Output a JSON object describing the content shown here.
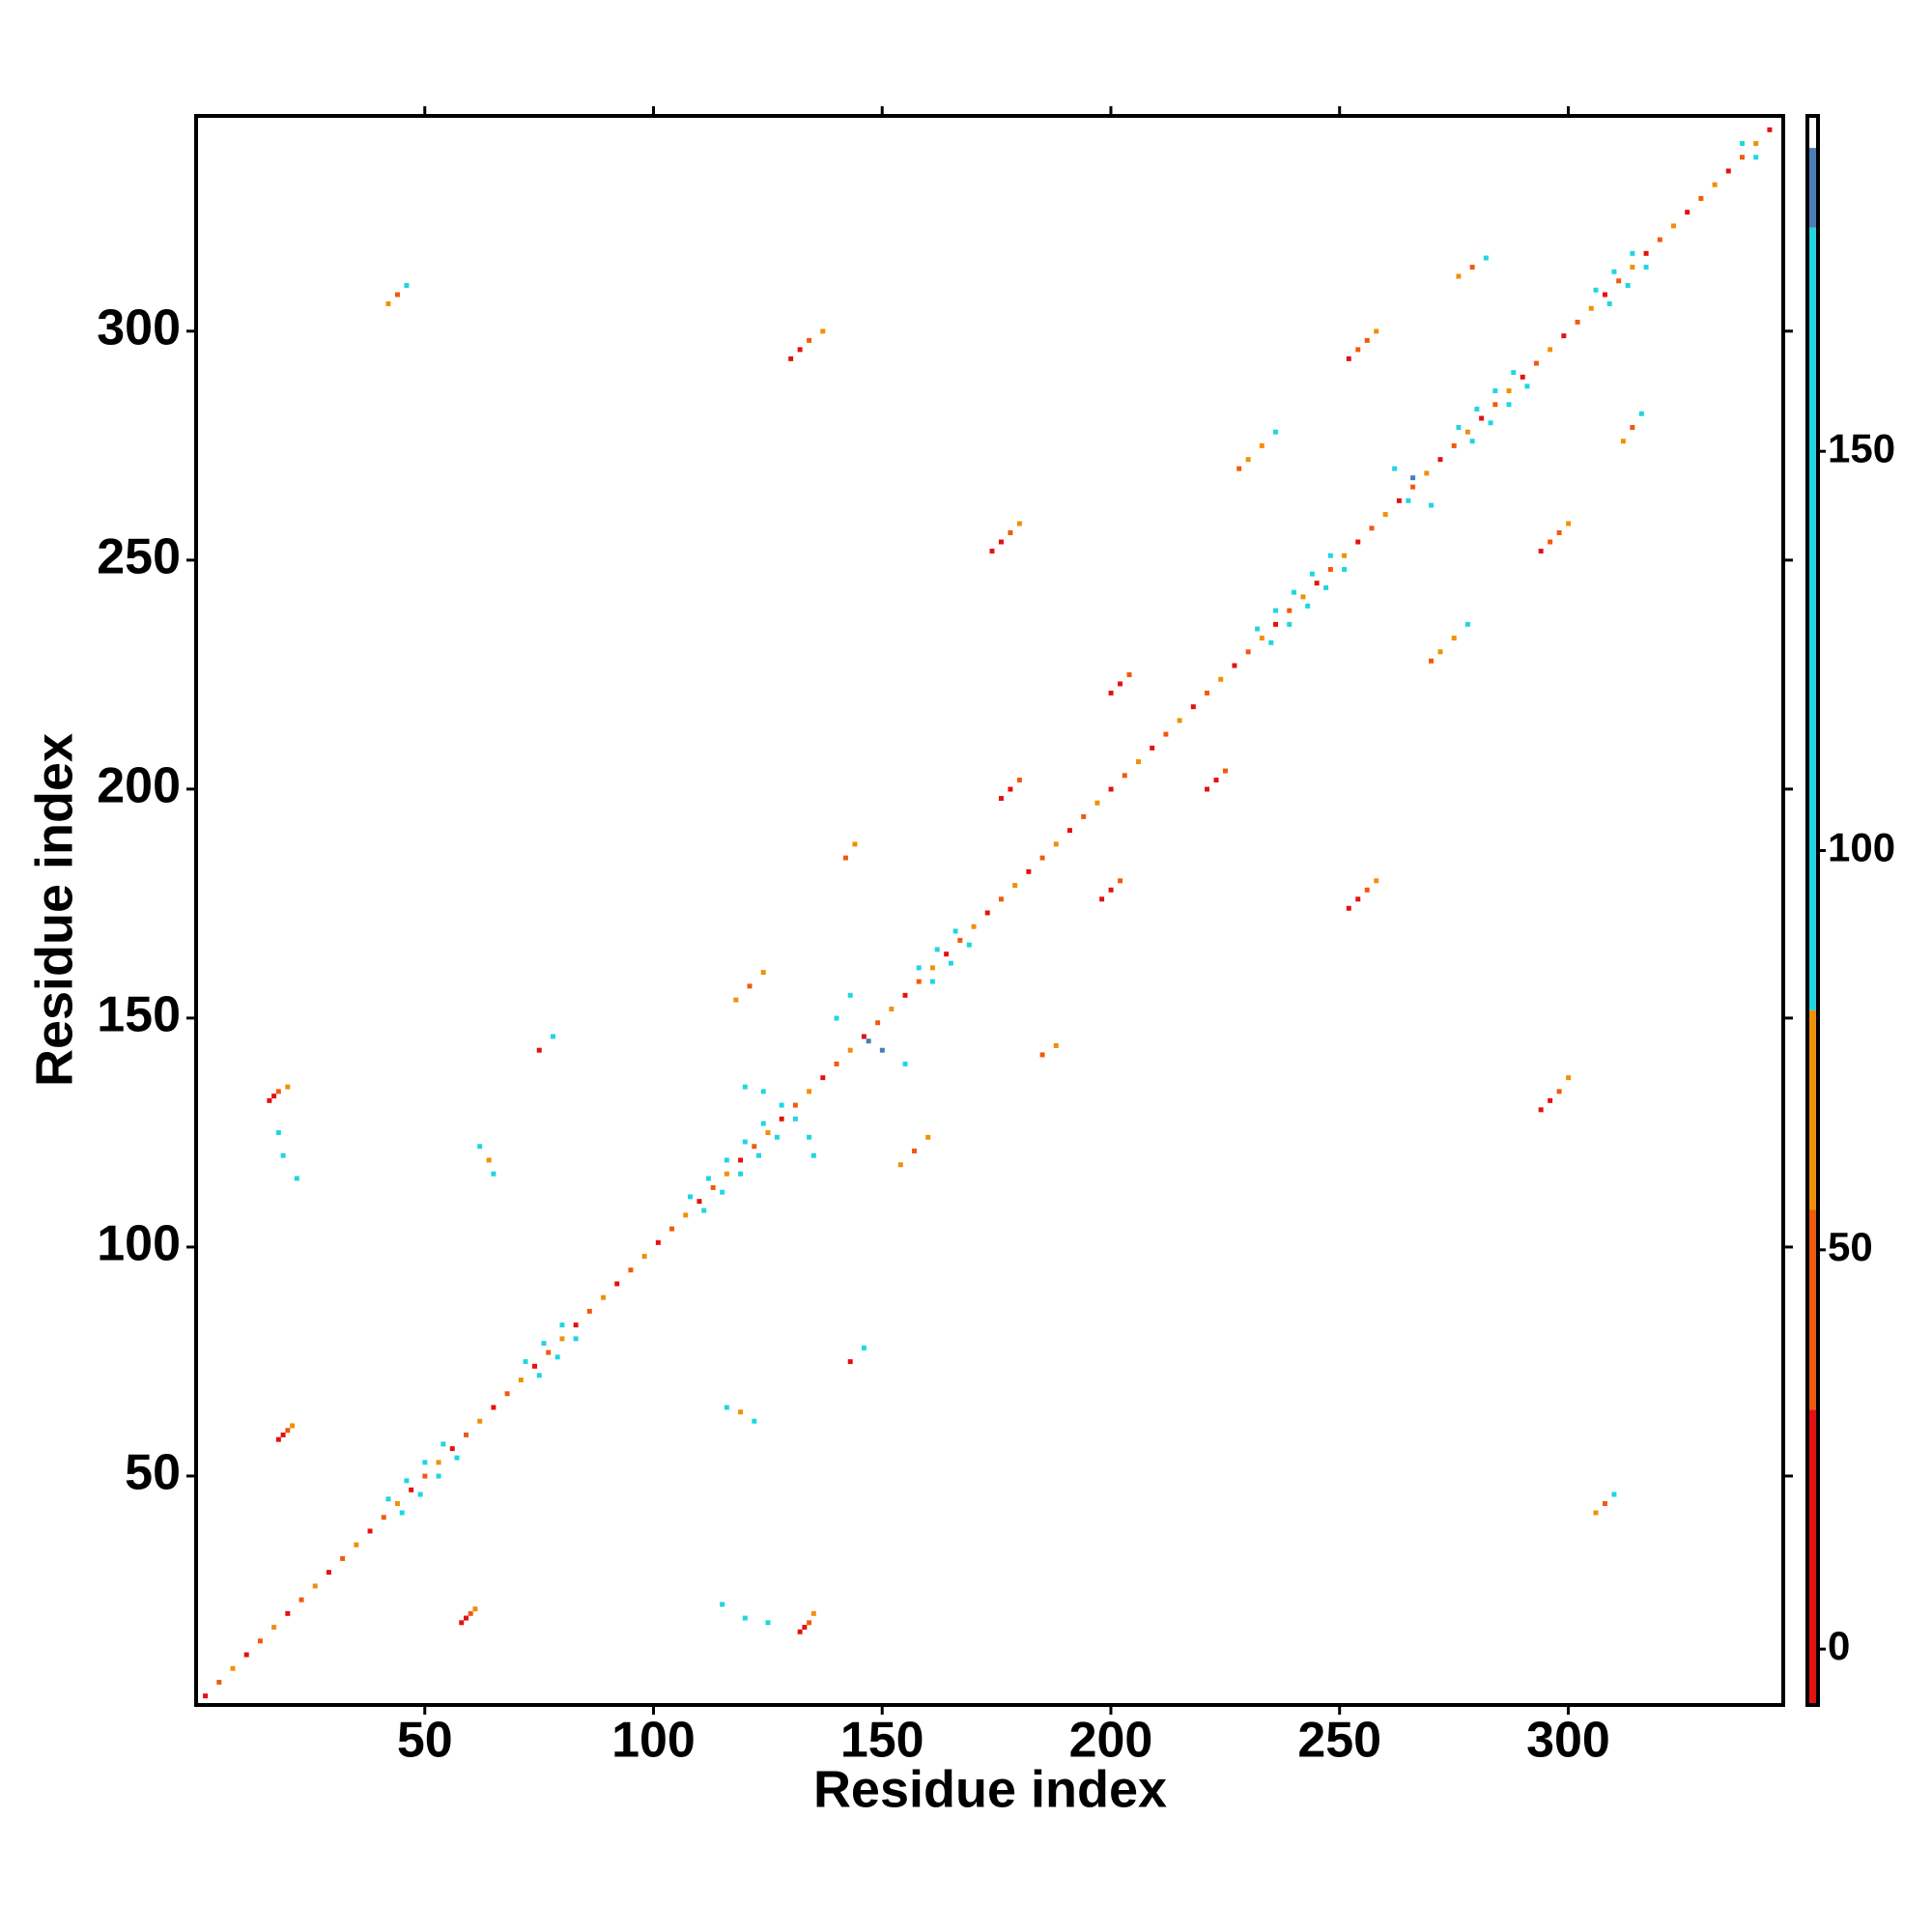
{
  "chart_data": {
    "type": "heatmap",
    "xlabel": "Residue index",
    "ylabel": "Residue index",
    "xlim": [
      0,
      347
    ],
    "ylim": [
      0,
      347
    ],
    "xticks": [
      50,
      100,
      150,
      200,
      250,
      300
    ],
    "yticks": [
      50,
      100,
      150,
      200,
      250,
      300
    ],
    "color_bins": [
      -7,
      30,
      55,
      80,
      178,
      188,
      192
    ],
    "colors": [
      "#e3120f",
      "#f05a10",
      "#f0900a",
      "#1fd6e0",
      "#4a7fb5",
      "#ffffff"
    ],
    "cticks": [
      0,
      50,
      100,
      150
    ],
    "cells": [
      [
        2,
        2,
        10
      ],
      [
        5,
        5,
        40
      ],
      [
        8,
        8,
        65
      ],
      [
        11,
        11,
        10
      ],
      [
        14,
        14,
        40
      ],
      [
        17,
        17,
        65
      ],
      [
        20,
        20,
        10
      ],
      [
        23,
        23,
        40
      ],
      [
        26,
        26,
        65
      ],
      [
        29,
        29,
        10
      ],
      [
        32,
        32,
        40
      ],
      [
        35,
        35,
        65
      ],
      [
        38,
        38,
        10
      ],
      [
        41,
        41,
        40
      ],
      [
        44,
        44,
        65
      ],
      [
        47,
        47,
        10
      ],
      [
        50,
        50,
        40
      ],
      [
        53,
        53,
        65
      ],
      [
        56,
        56,
        10
      ],
      [
        59,
        59,
        40
      ],
      [
        62,
        62,
        65
      ],
      [
        65,
        65,
        10
      ],
      [
        68,
        68,
        40
      ],
      [
        71,
        71,
        65
      ],
      [
        74,
        74,
        10
      ],
      [
        77,
        77,
        40
      ],
      [
        80,
        80,
        65
      ],
      [
        83,
        83,
        10
      ],
      [
        86,
        86,
        40
      ],
      [
        89,
        89,
        65
      ],
      [
        92,
        92,
        10
      ],
      [
        95,
        95,
        40
      ],
      [
        98,
        98,
        65
      ],
      [
        101,
        101,
        10
      ],
      [
        104,
        104,
        40
      ],
      [
        107,
        107,
        65
      ],
      [
        110,
        110,
        10
      ],
      [
        113,
        113,
        40
      ],
      [
        116,
        116,
        65
      ],
      [
        119,
        119,
        10
      ],
      [
        122,
        122,
        40
      ],
      [
        125,
        125,
        65
      ],
      [
        128,
        128,
        10
      ],
      [
        131,
        131,
        40
      ],
      [
        134,
        134,
        65
      ],
      [
        137,
        137,
        10
      ],
      [
        140,
        140,
        40
      ],
      [
        143,
        143,
        65
      ],
      [
        146,
        146,
        10
      ],
      [
        149,
        149,
        40
      ],
      [
        152,
        152,
        65
      ],
      [
        155,
        155,
        10
      ],
      [
        158,
        158,
        40
      ],
      [
        161,
        161,
        65
      ],
      [
        164,
        164,
        10
      ],
      [
        167,
        167,
        40
      ],
      [
        170,
        170,
        65
      ],
      [
        173,
        173,
        10
      ],
      [
        176,
        176,
        40
      ],
      [
        179,
        179,
        65
      ],
      [
        182,
        182,
        10
      ],
      [
        185,
        185,
        40
      ],
      [
        188,
        188,
        65
      ],
      [
        191,
        191,
        10
      ],
      [
        194,
        194,
        40
      ],
      [
        197,
        197,
        65
      ],
      [
        200,
        200,
        10
      ],
      [
        203,
        203,
        40
      ],
      [
        206,
        206,
        65
      ],
      [
        209,
        209,
        10
      ],
      [
        212,
        212,
        40
      ],
      [
        215,
        215,
        65
      ],
      [
        218,
        218,
        10
      ],
      [
        221,
        221,
        40
      ],
      [
        224,
        224,
        65
      ],
      [
        227,
        227,
        10
      ],
      [
        230,
        230,
        40
      ],
      [
        233,
        233,
        65
      ],
      [
        236,
        236,
        10
      ],
      [
        239,
        239,
        40
      ],
      [
        242,
        242,
        65
      ],
      [
        245,
        245,
        10
      ],
      [
        248,
        248,
        40
      ],
      [
        251,
        251,
        65
      ],
      [
        254,
        254,
        10
      ],
      [
        257,
        257,
        40
      ],
      [
        260,
        260,
        65
      ],
      [
        263,
        263,
        10
      ],
      [
        266,
        266,
        40
      ],
      [
        269,
        269,
        65
      ],
      [
        272,
        272,
        10
      ],
      [
        275,
        275,
        40
      ],
      [
        278,
        278,
        65
      ],
      [
        281,
        281,
        10
      ],
      [
        284,
        284,
        40
      ],
      [
        287,
        287,
        65
      ],
      [
        290,
        290,
        10
      ],
      [
        293,
        293,
        40
      ],
      [
        296,
        296,
        65
      ],
      [
        299,
        299,
        10
      ],
      [
        302,
        302,
        40
      ],
      [
        305,
        305,
        65
      ],
      [
        308,
        308,
        10
      ],
      [
        311,
        311,
        40
      ],
      [
        314,
        314,
        65
      ],
      [
        317,
        317,
        10
      ],
      [
        320,
        320,
        40
      ],
      [
        323,
        323,
        65
      ],
      [
        326,
        326,
        10
      ],
      [
        329,
        329,
        40
      ],
      [
        332,
        332,
        65
      ],
      [
        335,
        335,
        10
      ],
      [
        338,
        338,
        40
      ],
      [
        341,
        341,
        65
      ],
      [
        344,
        344,
        10
      ],
      [
        42,
        45,
        120
      ],
      [
        45,
        42,
        120
      ],
      [
        46,
        49,
        120
      ],
      [
        49,
        46,
        120
      ],
      [
        50,
        53,
        120
      ],
      [
        53,
        50,
        120
      ],
      [
        54,
        57,
        120
      ],
      [
        57,
        54,
        120
      ],
      [
        72,
        75,
        120
      ],
      [
        75,
        72,
        120
      ],
      [
        76,
        79,
        120
      ],
      [
        79,
        76,
        120
      ],
      [
        80,
        83,
        120
      ],
      [
        83,
        80,
        120
      ],
      [
        108,
        111,
        120
      ],
      [
        111,
        108,
        120
      ],
      [
        112,
        115,
        120
      ],
      [
        115,
        112,
        120
      ],
      [
        116,
        119,
        120
      ],
      [
        119,
        116,
        120
      ],
      [
        120,
        123,
        120
      ],
      [
        123,
        120,
        120
      ],
      [
        124,
        127,
        120
      ],
      [
        127,
        124,
        120
      ],
      [
        128,
        131,
        120
      ],
      [
        131,
        128,
        120
      ],
      [
        158,
        161,
        120
      ],
      [
        161,
        158,
        120
      ],
      [
        162,
        165,
        120
      ],
      [
        165,
        162,
        120
      ],
      [
        166,
        169,
        120
      ],
      [
        169,
        166,
        120
      ],
      [
        232,
        235,
        120
      ],
      [
        235,
        232,
        120
      ],
      [
        236,
        239,
        120
      ],
      [
        239,
        236,
        120
      ],
      [
        240,
        243,
        120
      ],
      [
        243,
        240,
        120
      ],
      [
        244,
        247,
        120
      ],
      [
        247,
        244,
        120
      ],
      [
        248,
        251,
        120
      ],
      [
        251,
        248,
        120
      ],
      [
        276,
        279,
        120
      ],
      [
        279,
        276,
        120
      ],
      [
        280,
        283,
        120
      ],
      [
        283,
        280,
        120
      ],
      [
        284,
        287,
        120
      ],
      [
        287,
        284,
        120
      ],
      [
        288,
        291,
        120
      ],
      [
        291,
        288,
        120
      ],
      [
        306,
        309,
        120
      ],
      [
        309,
        306,
        120
      ],
      [
        310,
        313,
        120
      ],
      [
        313,
        310,
        120
      ],
      [
        314,
        317,
        120
      ],
      [
        317,
        314,
        120
      ],
      [
        338,
        341,
        120
      ],
      [
        341,
        338,
        120
      ],
      [
        58,
        18,
        10
      ],
      [
        59,
        19,
        10
      ],
      [
        60,
        20,
        40
      ],
      [
        61,
        21,
        65
      ],
      [
        18,
        58,
        10
      ],
      [
        19,
        59,
        10
      ],
      [
        20,
        60,
        40
      ],
      [
        21,
        61,
        65
      ],
      [
        132,
        16,
        10
      ],
      [
        133,
        17,
        10
      ],
      [
        134,
        18,
        40
      ],
      [
        135,
        20,
        65
      ],
      [
        16,
        132,
        10
      ],
      [
        17,
        133,
        10
      ],
      [
        18,
        134,
        40
      ],
      [
        20,
        135,
        65
      ],
      [
        115,
        22,
        120
      ],
      [
        120,
        19,
        120
      ],
      [
        125,
        18,
        120
      ],
      [
        22,
        115,
        120
      ],
      [
        19,
        120,
        120
      ],
      [
        18,
        125,
        120
      ],
      [
        198,
        176,
        10
      ],
      [
        200,
        178,
        10
      ],
      [
        202,
        180,
        40
      ],
      [
        176,
        198,
        10
      ],
      [
        178,
        200,
        10
      ],
      [
        180,
        202,
        40
      ],
      [
        252,
        174,
        10
      ],
      [
        254,
        176,
        10
      ],
      [
        256,
        178,
        40
      ],
      [
        258,
        180,
        65
      ],
      [
        174,
        252,
        10
      ],
      [
        176,
        254,
        10
      ],
      [
        178,
        256,
        40
      ],
      [
        180,
        258,
        65
      ],
      [
        294,
        130,
        10
      ],
      [
        296,
        132,
        10
      ],
      [
        298,
        134,
        40
      ],
      [
        300,
        137,
        65
      ],
      [
        130,
        294,
        10
      ],
      [
        132,
        296,
        10
      ],
      [
        134,
        298,
        40
      ],
      [
        137,
        300,
        65
      ],
      [
        294,
        252,
        10
      ],
      [
        296,
        254,
        40
      ],
      [
        298,
        256,
        40
      ],
      [
        300,
        258,
        65
      ],
      [
        252,
        294,
        10
      ],
      [
        254,
        296,
        40
      ],
      [
        256,
        298,
        40
      ],
      [
        258,
        300,
        65
      ],
      [
        200,
        221,
        10
      ],
      [
        202,
        223,
        10
      ],
      [
        204,
        225,
        40
      ],
      [
        221,
        200,
        10
      ],
      [
        223,
        202,
        10
      ],
      [
        225,
        204,
        40
      ],
      [
        228,
        270,
        40
      ],
      [
        230,
        272,
        65
      ],
      [
        233,
        275,
        65
      ],
      [
        236,
        278,
        120
      ],
      [
        270,
        228,
        40
      ],
      [
        272,
        230,
        65
      ],
      [
        275,
        233,
        65
      ],
      [
        278,
        236,
        120
      ],
      [
        306,
        42,
        65
      ],
      [
        308,
        44,
        40
      ],
      [
        310,
        46,
        120
      ],
      [
        42,
        306,
        65
      ],
      [
        44,
        308,
        40
      ],
      [
        46,
        310,
        120
      ],
      [
        276,
        312,
        65
      ],
      [
        279,
        314,
        40
      ],
      [
        282,
        316,
        120
      ],
      [
        312,
        276,
        65
      ],
      [
        314,
        279,
        40
      ],
      [
        316,
        282,
        120
      ],
      [
        116,
        65,
        120
      ],
      [
        119,
        64,
        65
      ],
      [
        122,
        62,
        120
      ],
      [
        65,
        116,
        120
      ],
      [
        64,
        119,
        65
      ],
      [
        62,
        122,
        120
      ],
      [
        143,
        75,
        10
      ],
      [
        146,
        78,
        120
      ],
      [
        75,
        143,
        10
      ],
      [
        78,
        146,
        120
      ],
      [
        154,
        118,
        65
      ],
      [
        157,
        121,
        40
      ],
      [
        160,
        124,
        65
      ],
      [
        118,
        154,
        65
      ],
      [
        121,
        157,
        40
      ],
      [
        124,
        160,
        65
      ],
      [
        185,
        142,
        40
      ],
      [
        188,
        144,
        65
      ],
      [
        142,
        185,
        40
      ],
      [
        144,
        188,
        65
      ],
      [
        140,
        150,
        120
      ],
      [
        150,
        143,
        185
      ],
      [
        143,
        155,
        120
      ],
      [
        155,
        140,
        120
      ],
      [
        147,
        145,
        185
      ],
      [
        120,
        135,
        120
      ],
      [
        135,
        120,
        120
      ],
      [
        124,
        134,
        120
      ],
      [
        134,
        124,
        120
      ],
      [
        265,
        263,
        120
      ],
      [
        262,
        270,
        120
      ],
      [
        270,
        262,
        120
      ],
      [
        266,
        268,
        185
      ]
    ]
  }
}
